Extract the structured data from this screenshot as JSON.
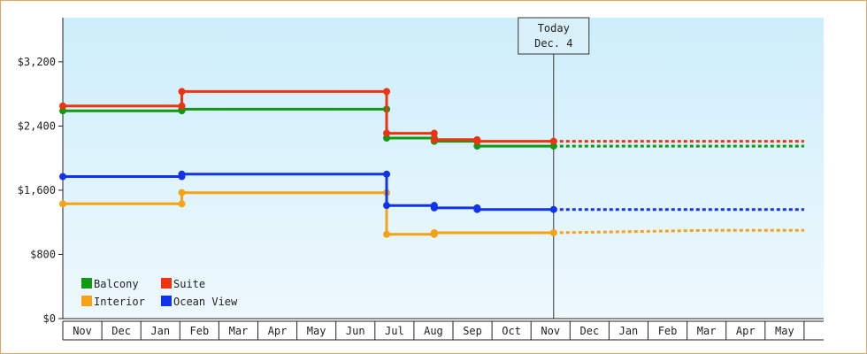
{
  "chart_data": {
    "type": "line",
    "style": "step",
    "y_ticks": [
      "$0",
      "$800",
      "$1,600",
      "$2,400",
      "$3,200"
    ],
    "y_tick_values": [
      0,
      800,
      1600,
      2400,
      3200
    ],
    "ylim": [
      0,
      3750
    ],
    "x_months": [
      "Nov",
      "Dec",
      "Jan",
      "Feb",
      "Mar",
      "Apr",
      "May",
      "Jun",
      "Jul",
      "Aug",
      "Sep",
      "Oct",
      "Nov",
      "Dec",
      "Jan",
      "Feb",
      "Mar",
      "Apr",
      "May"
    ],
    "today_marker": {
      "line1": "Today",
      "line2": "Dec. 4",
      "x": 12.58
    },
    "grid": false,
    "legend_position": "bottom-left",
    "series": [
      {
        "name": "Balcony",
        "color": "#119911",
        "points": [
          [
            0.0,
            2590
          ],
          [
            3.05,
            2590
          ],
          [
            3.05,
            2610
          ],
          [
            8.3,
            2610
          ],
          [
            8.3,
            2250
          ],
          [
            9.52,
            2250
          ],
          [
            9.52,
            2210
          ],
          [
            10.62,
            2210
          ],
          [
            10.62,
            2150
          ],
          [
            12.58,
            2150
          ]
        ],
        "projection": [
          [
            12.58,
            2150
          ],
          [
            19.0,
            2150
          ]
        ]
      },
      {
        "name": "Suite",
        "color": "#ee3311",
        "points": [
          [
            0.0,
            2650
          ],
          [
            3.05,
            2650
          ],
          [
            3.05,
            2830
          ],
          [
            8.3,
            2830
          ],
          [
            8.3,
            2310
          ],
          [
            9.52,
            2310
          ],
          [
            9.52,
            2230
          ],
          [
            10.62,
            2230
          ],
          [
            10.62,
            2210
          ],
          [
            12.58,
            2210
          ]
        ],
        "projection": [
          [
            12.58,
            2210
          ],
          [
            19.0,
            2210
          ]
        ]
      },
      {
        "name": "Interior",
        "color": "#f5a315",
        "points": [
          [
            0.0,
            1430
          ],
          [
            3.05,
            1430
          ],
          [
            3.05,
            1570
          ],
          [
            8.3,
            1570
          ],
          [
            8.3,
            1050
          ],
          [
            9.52,
            1050
          ],
          [
            9.52,
            1070
          ],
          [
            12.58,
            1070
          ]
        ],
        "projection": [
          [
            12.58,
            1070
          ],
          [
            14.0,
            1080
          ],
          [
            16.5,
            1100
          ],
          [
            19.0,
            1100
          ]
        ]
      },
      {
        "name": "Ocean View",
        "color": "#1133ee",
        "points": [
          [
            0.0,
            1770
          ],
          [
            3.05,
            1770
          ],
          [
            3.05,
            1800
          ],
          [
            8.3,
            1800
          ],
          [
            8.3,
            1410
          ],
          [
            9.52,
            1410
          ],
          [
            9.52,
            1380
          ],
          [
            10.62,
            1380
          ],
          [
            10.62,
            1360
          ],
          [
            12.58,
            1360
          ]
        ],
        "projection": [
          [
            12.58,
            1360
          ],
          [
            19.0,
            1360
          ]
        ]
      }
    ],
    "markers": {
      "Balcony": [
        0,
        3.05,
        8.3,
        9.52,
        10.62,
        12.58
      ],
      "Suite": [
        0,
        3.05,
        8.3,
        9.52,
        10.62,
        12.58
      ],
      "Interior": [
        0,
        3.05,
        8.3,
        9.52,
        12.58
      ],
      "Ocean View": [
        0,
        3.05,
        8.3,
        9.52,
        10.62,
        12.58
      ]
    }
  }
}
